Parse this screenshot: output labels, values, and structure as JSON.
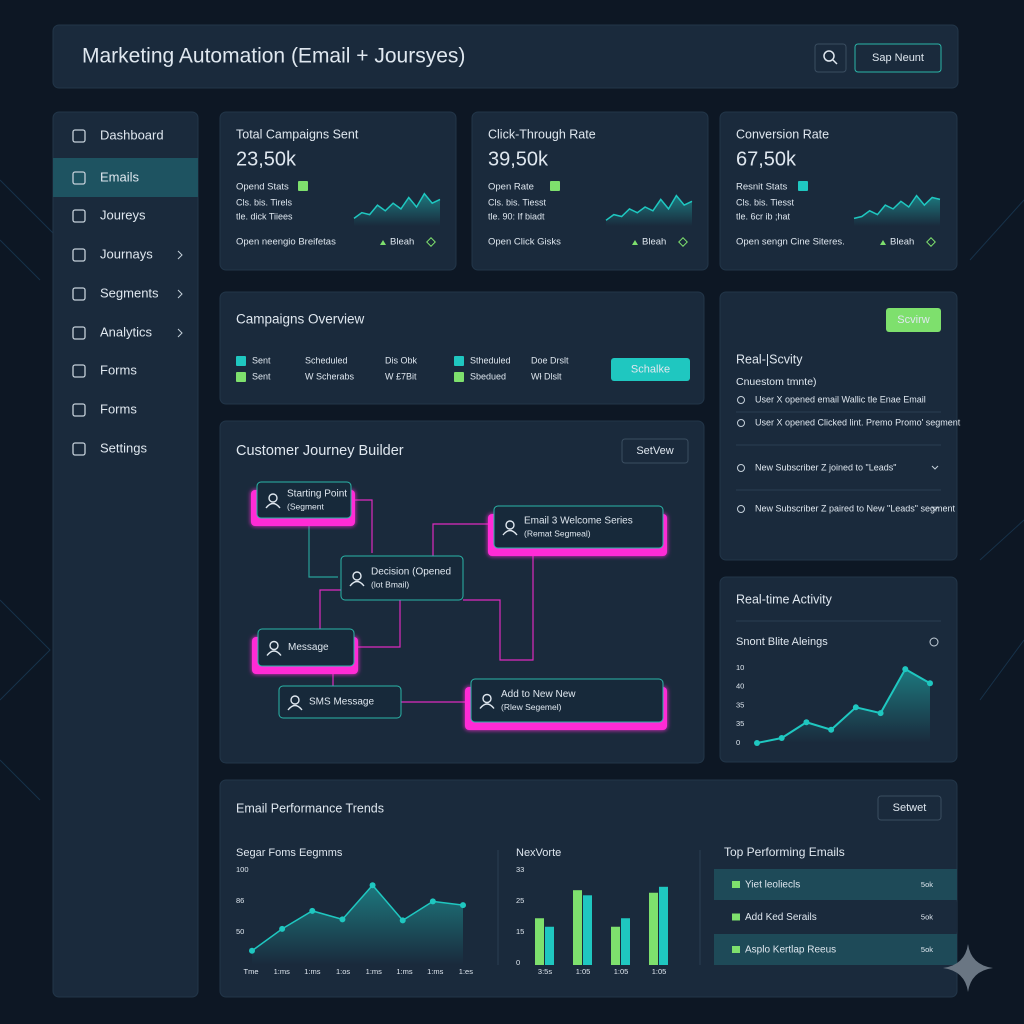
{
  "header": {
    "title": "Marketing Automation (Email + Joursyes)",
    "button": "Sap Neunt"
  },
  "sidebar": {
    "items": [
      "Dashboard",
      "Emails",
      "Joureys",
      "Journays",
      "Segments",
      "Analytics",
      "Forms",
      "Forms",
      "Settings"
    ],
    "active": 1
  },
  "kpis": [
    {
      "title": "Total Campaigns Sent",
      "value": "23,50k",
      "status": "Opend Stats",
      "lines": [
        "Cls. bis. Tirels",
        "tle. dick Tiiees"
      ],
      "footer": "Open neengio Breifetas",
      "trend": "Bleah",
      "sparkline": [
        20,
        35,
        30,
        55,
        40,
        60,
        45,
        75,
        50,
        85,
        60,
        70
      ],
      "ylim": [
        0,
        100
      ]
    },
    {
      "title": "Click-Through Rate",
      "value": "39,50k",
      "status": "Open Rate",
      "lines": [
        "Cls. bis. Tiesst",
        "tle. 90: If biadt"
      ],
      "footer": "Open Click Gisks",
      "trend": "Bleah",
      "sparkline": [
        15,
        30,
        25,
        45,
        35,
        50,
        40,
        70,
        45,
        80,
        55,
        65
      ],
      "ylim": [
        0,
        100
      ]
    },
    {
      "title": "Conversion Rate",
      "value": "67,50k",
      "status": "Resnit Stats",
      "lines": [
        "Cls. bis. Tiesst",
        "tle. 6cr ib ;hat"
      ],
      "footer": "Open sengn Cine Siteres.",
      "trend": "Bleah",
      "sparkline": [
        20,
        25,
        40,
        30,
        55,
        45,
        65,
        50,
        80,
        55,
        75,
        70
      ],
      "ylim": [
        0,
        100
      ]
    }
  ],
  "campaigns_overview": {
    "title": "Campaigns Overview",
    "rows": [
      [
        "Sent",
        "Scheduled",
        "Dis Obk",
        "Stheduled",
        "Doe Drslt"
      ],
      [
        "Sent",
        "W Scherabs",
        "W £7Bit",
        "Sbedued",
        "Wł Dlslt"
      ]
    ],
    "button": "Schalke"
  },
  "activity_feed": {
    "button": "Scvirw",
    "title": "Real-|Scvity",
    "subtitle": "Cnuestom tmnte)",
    "items": [
      "User X opened email Wallic tle Enae Email",
      "User X opened Clicked lint. Premo Promo' segment",
      "New Subscriber Z joined to \"Leads\"",
      "New Subscriber Z paired to New \"Leads\" segment"
    ]
  },
  "journey_builder": {
    "title": "Customer Journey Builder",
    "button": "SetVew",
    "nodes": [
      {
        "label": "Starting Point",
        "sublabel": "(Segment"
      },
      {
        "label": "Email 3 Welcome Series",
        "sublabel": "(Remat Segmeal)"
      },
      {
        "label": "Decision (Opened",
        "sublabel": "(lot Bmail)"
      },
      {
        "label": "Message",
        "sublabel": null
      },
      {
        "label": "SMS Message",
        "sublabel": null
      },
      {
        "label": "Add to New New",
        "sublabel": "(Rlew Segemel)"
      }
    ]
  },
  "realtime_activity": {
    "title": "Real-time Activity",
    "subtitle": "Snont Blite Aleings",
    "y_labels": [
      "10",
      "40",
      "35",
      "35",
      "0"
    ],
    "values": [
      0,
      6,
      25,
      16,
      43,
      36,
      89,
      72
    ],
    "ylim": [
      0,
      100
    ]
  },
  "performance_trends": {
    "title": "Email Performance Trends",
    "button": "Setwet",
    "line_chart": {
      "title": "Segar Foms Eegmms",
      "y_labels": [
        "100",
        "86",
        "50"
      ],
      "x_labels": [
        "Tme",
        "1:ms",
        "1:ms",
        "1:os",
        "1:ms",
        "1:ms",
        "1:ms",
        "1:es"
      ],
      "values": [
        15,
        38,
        57,
        48,
        84,
        47,
        67,
        63
      ],
      "ylim": [
        0,
        100
      ]
    },
    "bar_chart": {
      "title": "NexVorte",
      "y_labels": [
        "33",
        "25",
        "15",
        "0"
      ],
      "x_labels": [
        "3:5s",
        "1:05",
        "1:05",
        "1:05"
      ],
      "series": [
        {
          "color": "#7ee06d",
          "values": [
            55,
            88,
            45,
            85
          ]
        },
        {
          "color": "#1fc7c0",
          "values": [
            45,
            82,
            55,
            92
          ]
        }
      ],
      "ylim": [
        0,
        100
      ]
    },
    "top_emails": {
      "title": "Top Performing Emails",
      "rows": [
        {
          "name": "Yiet leoliecls",
          "value": "5ok"
        },
        {
          "name": "Add Ked Serails",
          "value": "5ok"
        },
        {
          "name": "Asplo Kertlap Reeus",
          "value": "5ok"
        }
      ]
    }
  }
}
